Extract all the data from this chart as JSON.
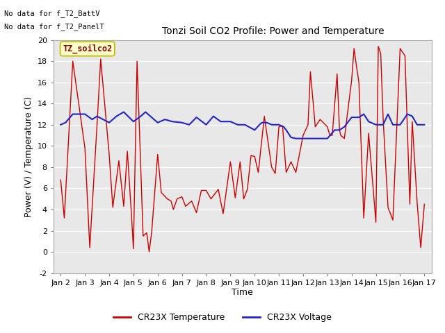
{
  "title": "Tonzi Soil CO2 Profile: Power and Temperature",
  "xlabel": "Time",
  "ylabel": "Power (V) / Temperature (C)",
  "ylim": [
    -2,
    20
  ],
  "yticks": [
    -2,
    0,
    2,
    4,
    6,
    8,
    10,
    12,
    14,
    16,
    18,
    20
  ],
  "no_data_text1": "No data for f_T2_BattV",
  "no_data_text2": "No data for f_T2_PanelT",
  "legend_box_label": "TZ_soilco2",
  "legend_entries": [
    "CR23X Temperature",
    "CR23X Voltage"
  ],
  "legend_colors": [
    "#cc0000",
    "#2222cc"
  ],
  "bg_color": "#ffffff",
  "plot_bg_color": "#e8e8e8",
  "red_color": "#cc0000",
  "blue_color": "#2222cc",
  "x_day_labels": [
    "Jan 2",
    "Jan 3",
    "Jan 4",
    "Jan 5",
    "Jan 6",
    "Jan 7",
    "Jan 8",
    "Jan 9",
    "Jan 10",
    "Jan 11",
    "Jan 12",
    "Jan 13",
    "Jan 14",
    "Jan 15",
    "Jan 16",
    "Jan 17"
  ],
  "red_x": [
    0.0,
    0.15,
    0.5,
    1.0,
    1.2,
    1.5,
    1.65,
    2.0,
    2.15,
    2.4,
    2.6,
    2.75,
    2.9,
    3.0,
    3.15,
    3.4,
    3.55,
    3.65,
    3.75,
    4.0,
    4.15,
    4.4,
    4.55,
    4.65,
    4.8,
    5.0,
    5.15,
    5.4,
    5.6,
    5.8,
    6.0,
    6.2,
    6.5,
    6.7,
    7.0,
    7.2,
    7.4,
    7.55,
    7.7,
    7.85,
    8.0,
    8.15,
    8.4,
    8.7,
    8.85,
    9.0,
    9.15,
    9.3,
    9.5,
    9.7,
    10.0,
    10.2,
    10.3,
    10.5,
    10.7,
    11.0,
    11.1,
    11.2,
    11.4,
    11.5,
    11.55,
    11.7,
    12.0,
    12.1,
    12.2,
    12.3,
    12.5,
    12.7,
    13.0,
    13.1,
    13.2,
    13.3,
    13.5,
    13.7,
    14.0,
    14.2,
    14.4,
    14.5,
    14.7,
    14.85,
    15.0
  ],
  "red_y": [
    6.8,
    3.2,
    18.0,
    9.8,
    0.4,
    12.0,
    18.2,
    9.2,
    4.2,
    8.6,
    4.3,
    9.5,
    4.2,
    0.3,
    18.0,
    1.5,
    1.8,
    0.0,
    1.8,
    9.2,
    5.6,
    5.0,
    4.8,
    4.0,
    5.0,
    5.2,
    4.3,
    4.8,
    3.7,
    5.8,
    5.8,
    5.0,
    5.9,
    3.6,
    8.5,
    5.1,
    8.5,
    5.0,
    5.9,
    9.1,
    9.0,
    7.5,
    12.8,
    8.0,
    7.4,
    11.8,
    11.9,
    7.5,
    8.5,
    7.5,
    11.0,
    12.0,
    17.0,
    11.8,
    12.5,
    11.8,
    11.0,
    11.0,
    16.8,
    11.5,
    11.0,
    10.7,
    16.2,
    19.2,
    17.5,
    16.0,
    3.2,
    11.2,
    2.8,
    19.4,
    18.7,
    12.5,
    4.2,
    3.0,
    19.2,
    18.5,
    4.5,
    12.3,
    4.7,
    0.4,
    4.5
  ],
  "blue_x": [
    0.0,
    0.2,
    0.5,
    1.0,
    1.3,
    1.5,
    2.0,
    2.3,
    2.6,
    3.0,
    3.3,
    3.5,
    4.0,
    4.3,
    4.6,
    5.0,
    5.3,
    5.6,
    6.0,
    6.3,
    6.6,
    7.0,
    7.3,
    7.6,
    8.0,
    8.2,
    8.3,
    8.5,
    8.7,
    9.0,
    9.2,
    9.3,
    9.5,
    9.7,
    9.8,
    10.0,
    10.1,
    10.3,
    10.5,
    10.7,
    10.8,
    11.0,
    11.3,
    11.5,
    11.7,
    12.0,
    12.3,
    12.5,
    12.7,
    13.0,
    13.3,
    13.5,
    13.7,
    14.0,
    14.3,
    14.5,
    14.7,
    15.0
  ],
  "blue_y": [
    12.0,
    12.2,
    13.0,
    13.0,
    12.5,
    12.8,
    12.2,
    12.8,
    13.2,
    12.3,
    12.8,
    13.2,
    12.2,
    12.5,
    12.3,
    12.2,
    12.0,
    12.7,
    12.0,
    12.8,
    12.3,
    12.3,
    12.0,
    12.0,
    11.5,
    12.0,
    12.2,
    12.2,
    12.0,
    12.0,
    11.8,
    11.5,
    10.8,
    10.7,
    10.7,
    10.7,
    10.7,
    10.7,
    10.7,
    10.7,
    10.7,
    10.7,
    11.5,
    11.5,
    11.8,
    12.7,
    12.7,
    13.0,
    12.3,
    12.0,
    12.0,
    13.0,
    12.0,
    12.0,
    13.0,
    12.8,
    12.0,
    12.0
  ]
}
